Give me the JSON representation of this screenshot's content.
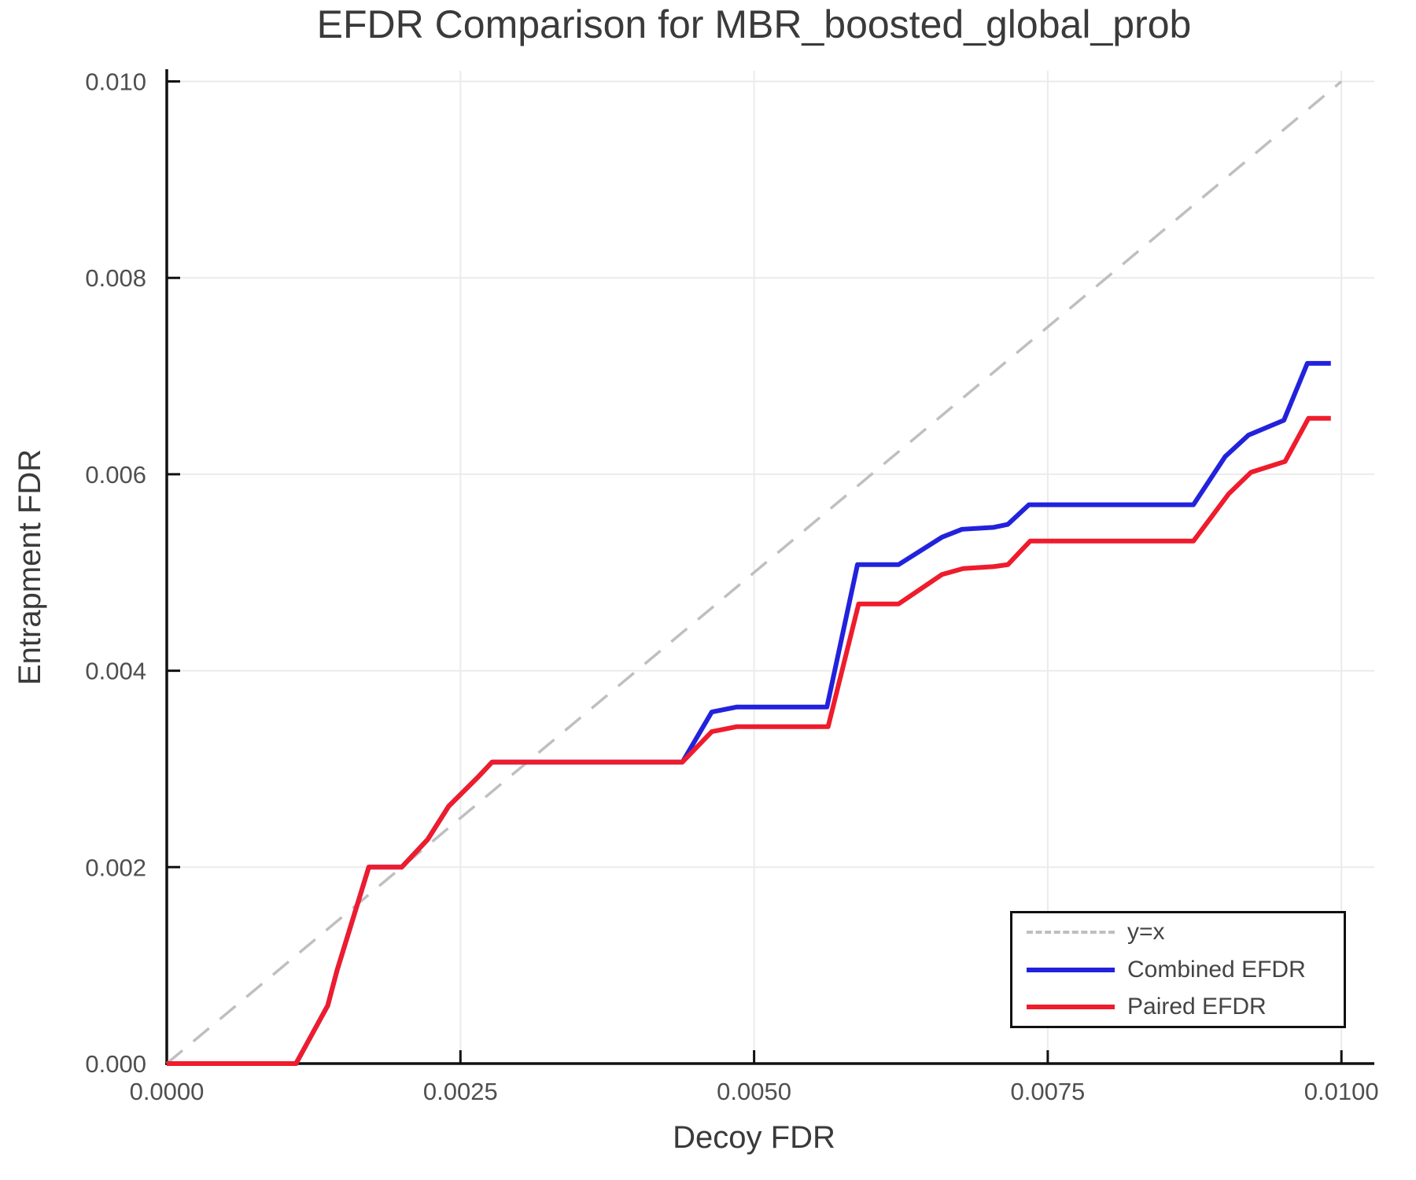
{
  "figure": {
    "title": "EFDR Comparison for MBR_boosted_global_prob",
    "xlabel": "Decoy FDR",
    "ylabel": "Entrapment FDR"
  },
  "chart_data": {
    "type": "line",
    "title": "EFDR Comparison for MBR_boosted_global_prob",
    "xlabel": "Decoy FDR",
    "ylabel": "Entrapment FDR",
    "xlim": [
      0.0,
      0.01028
    ],
    "ylim": [
      0.0,
      0.01011
    ],
    "grid": true,
    "legend_position": "lower right",
    "xticks": {
      "values": [
        0.0,
        0.0025,
        0.005,
        0.0075,
        0.01
      ],
      "labels": [
        "0.0000",
        "0.0025",
        "0.0050",
        "0.0075",
        "0.0100"
      ]
    },
    "yticks": {
      "values": [
        0.0,
        0.002,
        0.004,
        0.006,
        0.008,
        0.01
      ],
      "labels": [
        "0.000",
        "0.002",
        "0.004",
        "0.006",
        "0.008",
        "0.010"
      ]
    },
    "colors": {
      "grid": "#ebebeb",
      "axis": "#111111",
      "tick_label": "#4f4f4f",
      "text": "#3a3a3a",
      "legend_border": "#111111"
    },
    "series": [
      {
        "name": "y=x",
        "style": "dashed",
        "color": "#bfbfbf",
        "x": [
          0.0,
          0.01
        ],
        "y": [
          0.0,
          0.01
        ]
      },
      {
        "name": "Combined EFDR",
        "style": "solid",
        "color": "#2222dd",
        "x": [
          0.0,
          0.0011,
          0.00137,
          0.00145,
          0.00172,
          0.002,
          0.00222,
          0.0024,
          0.00266,
          0.00277,
          0.00439,
          0.00464,
          0.00485,
          0.00562,
          0.00588,
          0.00623,
          0.0066,
          0.00677,
          0.00704,
          0.00716,
          0.00734,
          0.00874,
          0.00901,
          0.00921,
          0.00951,
          0.00971,
          0.00991
        ],
        "y": [
          0.0,
          0.0,
          0.00059,
          0.00095,
          0.002,
          0.002,
          0.00228,
          0.00262,
          0.00293,
          0.00307,
          0.00307,
          0.00358,
          0.00363,
          0.00363,
          0.00508,
          0.00508,
          0.00536,
          0.00544,
          0.00546,
          0.00549,
          0.00569,
          0.00569,
          0.00618,
          0.0064,
          0.00655,
          0.00713,
          0.00713
        ]
      },
      {
        "name": "Paired EFDR",
        "style": "solid",
        "color": "#ee1c2c",
        "x": [
          0.0,
          0.0011,
          0.00137,
          0.00145,
          0.00172,
          0.002,
          0.00222,
          0.0024,
          0.00266,
          0.00277,
          0.00439,
          0.00464,
          0.00485,
          0.00563,
          0.00589,
          0.00623,
          0.0066,
          0.00678,
          0.00704,
          0.00716,
          0.00735,
          0.00874,
          0.00904,
          0.00923,
          0.00952,
          0.00972,
          0.00991
        ],
        "y": [
          0.0,
          0.0,
          0.00059,
          0.00095,
          0.002,
          0.002,
          0.00228,
          0.00262,
          0.00293,
          0.00307,
          0.00307,
          0.00338,
          0.00343,
          0.00343,
          0.00468,
          0.00468,
          0.00498,
          0.00504,
          0.00506,
          0.00508,
          0.00532,
          0.00532,
          0.0058,
          0.00602,
          0.00613,
          0.00657,
          0.00657
        ]
      }
    ]
  }
}
